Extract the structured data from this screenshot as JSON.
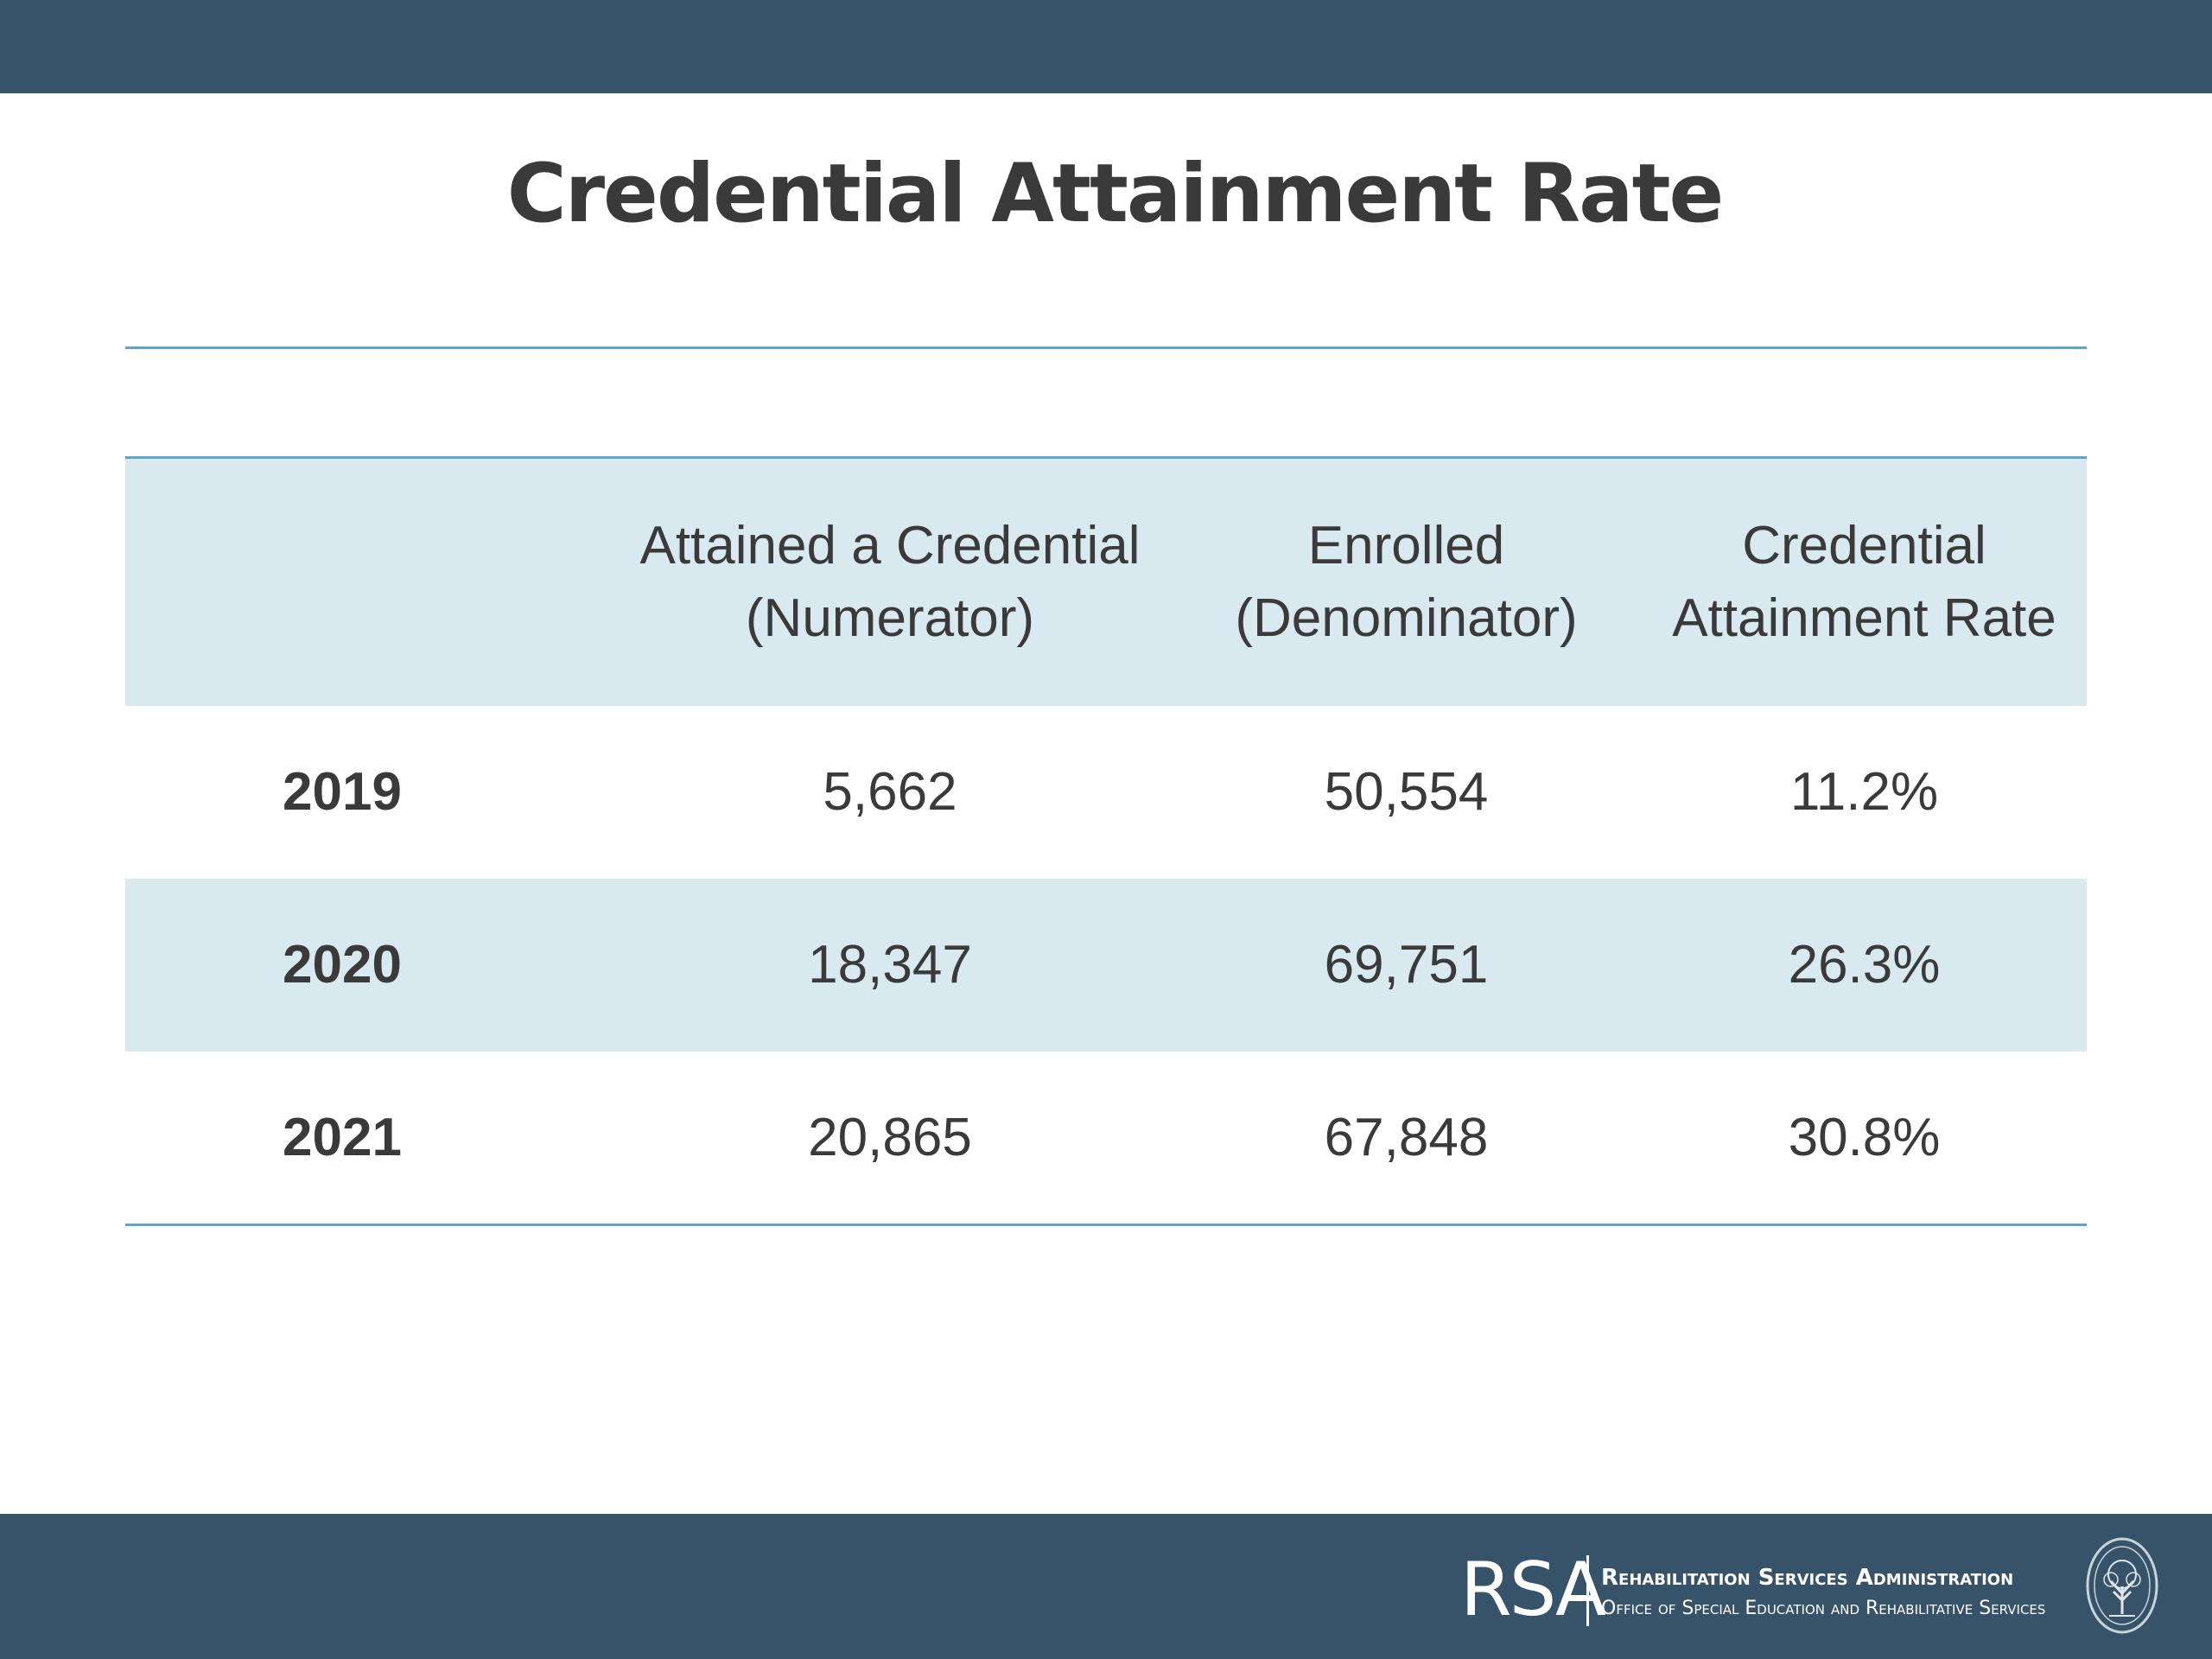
{
  "slide": {
    "title": "Credential Attainment Rate"
  },
  "table": {
    "headers": [
      "",
      "Attained a Credential\n(Numerator)",
      "Enrolled\n(Denominator)",
      "Credential\nAttainment Rate"
    ],
    "rows": [
      {
        "year": "2019",
        "numerator": "5,662",
        "denominator": "50,554",
        "rate": "11.2%"
      },
      {
        "year": "2020",
        "numerator": "18,347",
        "denominator": "69,751",
        "rate": "26.3%"
      },
      {
        "year": "2021",
        "numerator": "20,865",
        "denominator": "67,848",
        "rate": "30.8%"
      }
    ]
  },
  "footer": {
    "logo_text": "RSA",
    "agency_name": "Rehabilitation Services Administration",
    "office_name": "Office of Special Education and Rehabilitative Services",
    "seal_icon": "department-seal-icon"
  },
  "colors": {
    "bar": "#375369",
    "rule": "#5ea5cf",
    "shade": "#d8e9f0",
    "text": "#3a3a3a"
  }
}
